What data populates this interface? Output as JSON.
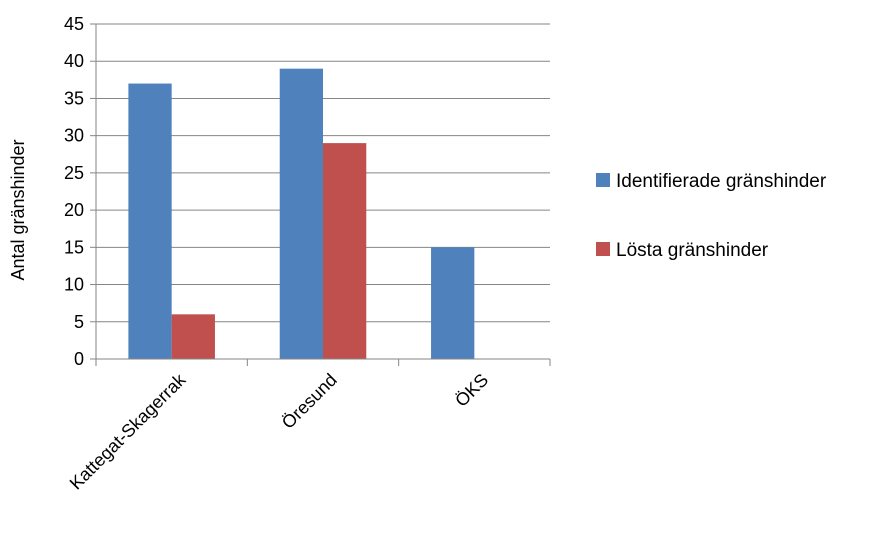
{
  "chart_data": {
    "type": "bar",
    "title": "",
    "xlabel": "",
    "ylabel": "Antal gränshinder",
    "categories": [
      "Kattegat-Skagerrak",
      "Öresund",
      "ÖKS"
    ],
    "series": [
      {
        "name": "Identifierade gränshinder",
        "color": "#4f81bd",
        "values": [
          37,
          39,
          15
        ]
      },
      {
        "name": "Lösta gränshinder",
        "color": "#c0504d",
        "values": [
          6,
          29,
          null
        ]
      }
    ],
    "ylim": [
      0,
      45
    ],
    "yticks": [
      0,
      5,
      10,
      15,
      20,
      25,
      30,
      35,
      40,
      45
    ],
    "grid": true,
    "legend_position": "right"
  }
}
